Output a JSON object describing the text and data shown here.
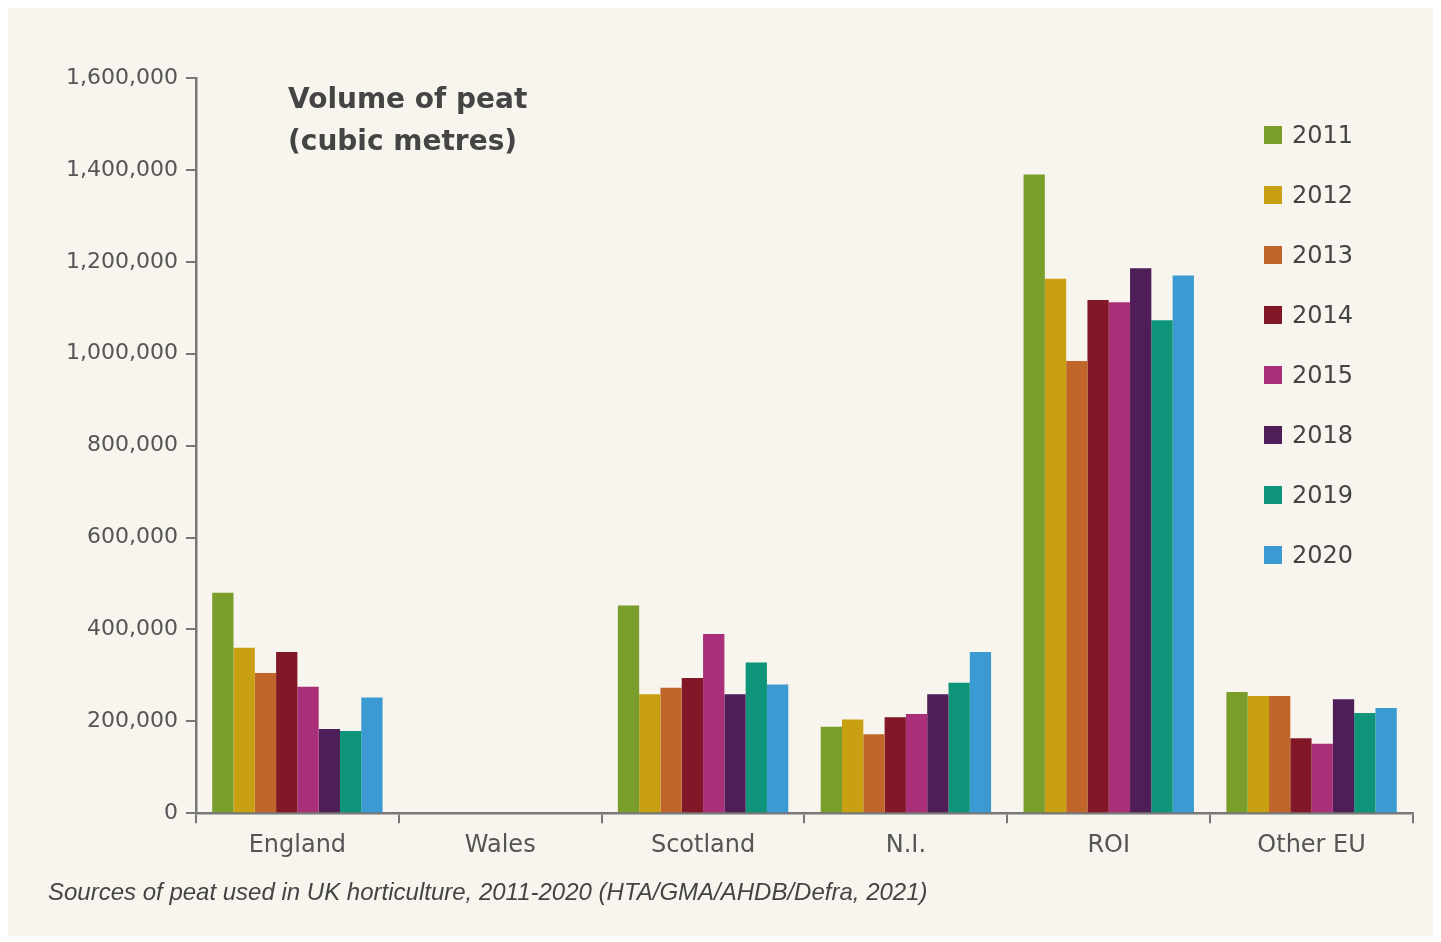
{
  "chart_data": {
    "type": "bar",
    "ylabel": "Volume of peat (cubic metres)",
    "categories": [
      "England",
      "Wales",
      "Scotland",
      "N.I.",
      "ROI",
      "Other EU"
    ],
    "series": [
      {
        "name": "2011",
        "color": "#7a9e2c",
        "values": [
          480000,
          null,
          452000,
          188000,
          1390000,
          264000
        ]
      },
      {
        "name": "2012",
        "color": "#c9a012",
        "values": [
          360000,
          null,
          259000,
          204000,
          1163000,
          255000
        ]
      },
      {
        "name": "2013",
        "color": "#c0662a",
        "values": [
          305000,
          null,
          273000,
          172000,
          984000,
          255000
        ]
      },
      {
        "name": "2014",
        "color": "#821827",
        "values": [
          351000,
          null,
          294000,
          209000,
          1117000,
          163000
        ]
      },
      {
        "name": "2015",
        "color": "#a93078",
        "values": [
          275000,
          null,
          390000,
          216000,
          1112000,
          151000
        ]
      },
      {
        "name": "2018",
        "color": "#4f1e58",
        "values": [
          183000,
          null,
          259000,
          259000,
          1186000,
          248000
        ]
      },
      {
        "name": "2019",
        "color": "#0e9478",
        "values": [
          179000,
          null,
          328000,
          284000,
          1073000,
          218000
        ]
      },
      {
        "name": "2020",
        "color": "#3a9ad1",
        "values": [
          252000,
          null,
          280000,
          351000,
          1170000,
          229000
        ]
      }
    ],
    "ylim": [
      0,
      1600000
    ],
    "yticks": [
      {
        "value": 0,
        "label": "0"
      },
      {
        "value": 200000,
        "label": "200,000"
      },
      {
        "value": 400000,
        "label": "400,000"
      },
      {
        "value": 600000,
        "label": "600,000"
      },
      {
        "value": 800000,
        "label": "800,000"
      },
      {
        "value": 1000000,
        "label": "1,000,000"
      },
      {
        "value": 1200000,
        "label": "1,200,000"
      },
      {
        "value": 1400000,
        "label": "1,400,000"
      },
      {
        "value": 1600000,
        "label": "1,600,000"
      }
    ],
    "grid": false,
    "legend": "top right",
    "annotations": [
      "Sources of peat used in UK horticulture, 2011-2020 (HTA/GMA/AHDB/Defra, 2021)"
    ]
  }
}
